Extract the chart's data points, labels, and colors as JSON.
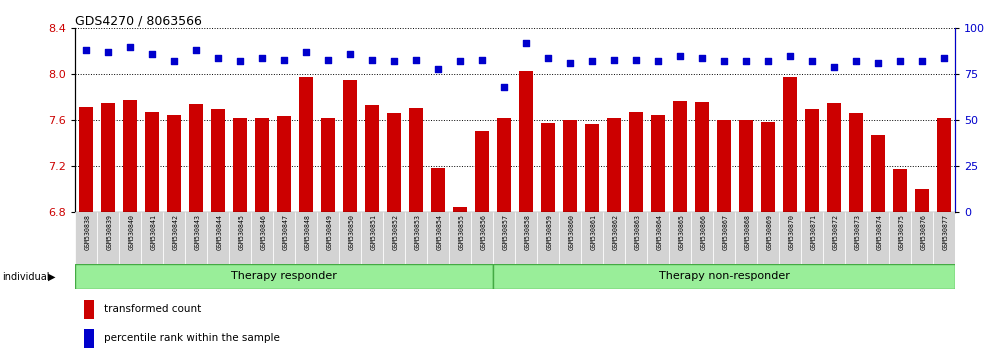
{
  "title": "GDS4270 / 8063566",
  "samples": [
    "GSM530838",
    "GSM530839",
    "GSM530840",
    "GSM530841",
    "GSM530842",
    "GSM530843",
    "GSM530844",
    "GSM530845",
    "GSM530846",
    "GSM530847",
    "GSM530848",
    "GSM530849",
    "GSM530850",
    "GSM530851",
    "GSM530852",
    "GSM530853",
    "GSM530854",
    "GSM530855",
    "GSM530856",
    "GSM530857",
    "GSM530858",
    "GSM530859",
    "GSM530860",
    "GSM530861",
    "GSM530862",
    "GSM530863",
    "GSM530864",
    "GSM530865",
    "GSM530866",
    "GSM530867",
    "GSM530868",
    "GSM530869",
    "GSM530870",
    "GSM530871",
    "GSM530872",
    "GSM530873",
    "GSM530874",
    "GSM530875",
    "GSM530876",
    "GSM530877"
  ],
  "bar_values": [
    7.72,
    7.75,
    7.78,
    7.67,
    7.65,
    7.74,
    7.7,
    7.62,
    7.62,
    7.64,
    7.98,
    7.62,
    7.95,
    7.73,
    7.66,
    7.71,
    7.19,
    6.85,
    7.51,
    7.62,
    8.03,
    7.58,
    7.6,
    7.57,
    7.62,
    7.67,
    7.65,
    7.77,
    7.76,
    7.6,
    7.6,
    7.59,
    7.98,
    7.7,
    7.75,
    7.66,
    7.47,
    7.18,
    7.0,
    7.62
  ],
  "percentile_values": [
    88,
    87,
    90,
    86,
    82,
    88,
    84,
    82,
    84,
    83,
    87,
    83,
    86,
    83,
    82,
    83,
    78,
    82,
    83,
    68,
    92,
    84,
    81,
    82,
    83,
    83,
    82,
    85,
    84,
    82,
    82,
    82,
    85,
    82,
    79,
    82,
    81,
    82,
    82,
    84
  ],
  "bar_color": "#cc0000",
  "dot_color": "#0000cc",
  "ylim_left": [
    6.8,
    8.4
  ],
  "ylim_right": [
    0,
    100
  ],
  "yticks_left": [
    6.8,
    7.2,
    7.6,
    8.0,
    8.4
  ],
  "yticks_right": [
    0,
    25,
    50,
    75,
    100
  ],
  "group1_label": "Therapy responder",
  "group2_label": "Therapy non-responder",
  "group1_count": 19,
  "legend_bar_label": "transformed count",
  "legend_dot_label": "percentile rank within the sample",
  "individual_label": "individual",
  "bg_plot": "#ffffff",
  "tick_bg": "#d3d3d3",
  "group_bg": "#99ee99",
  "group_border": "#44aa44"
}
